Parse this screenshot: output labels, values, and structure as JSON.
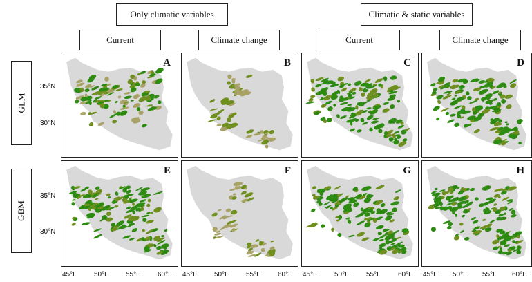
{
  "group_headers": [
    "Only climatic variables",
    "Climatic & static variables"
  ],
  "column_headers": [
    "Current",
    "Climate change",
    "Current",
    "Climate change"
  ],
  "row_labels": [
    "GLM",
    "GBM"
  ],
  "panel_labels": [
    "A",
    "B",
    "C",
    "D",
    "E",
    "F",
    "G",
    "H"
  ],
  "lat_ticks": [
    "35°N",
    "30°N"
  ],
  "lon_ticks": [
    "45°E",
    "50°E",
    "55°E",
    "60°E"
  ],
  "colors": {
    "landmass": "#d9d9d9",
    "high_suitability": "#2e8b12",
    "medium_suitability": "#6f8f1f",
    "low_suitability": "#a9a266"
  },
  "panels": [
    {
      "label": "A",
      "model": "GLM",
      "scenario": "Current",
      "variables": "Only climatic variables",
      "suitability": "medium-high"
    },
    {
      "label": "B",
      "model": "GLM",
      "scenario": "Climate change",
      "variables": "Only climatic variables",
      "suitability": "low"
    },
    {
      "label": "C",
      "model": "GLM",
      "scenario": "Current",
      "variables": "Climatic & static variables",
      "suitability": "high"
    },
    {
      "label": "D",
      "model": "GLM",
      "scenario": "Climate change",
      "variables": "Climatic & static variables",
      "suitability": "high"
    },
    {
      "label": "E",
      "model": "GBM",
      "scenario": "Current",
      "variables": "Only climatic variables",
      "suitability": "high"
    },
    {
      "label": "F",
      "model": "GBM",
      "scenario": "Climate change",
      "variables": "Only climatic variables",
      "suitability": "low"
    },
    {
      "label": "G",
      "model": "GBM",
      "scenario": "Current",
      "variables": "Climatic & static variables",
      "suitability": "high"
    },
    {
      "label": "H",
      "model": "GBM",
      "scenario": "Climate change",
      "variables": "Climatic & static variables",
      "suitability": "high"
    }
  ]
}
